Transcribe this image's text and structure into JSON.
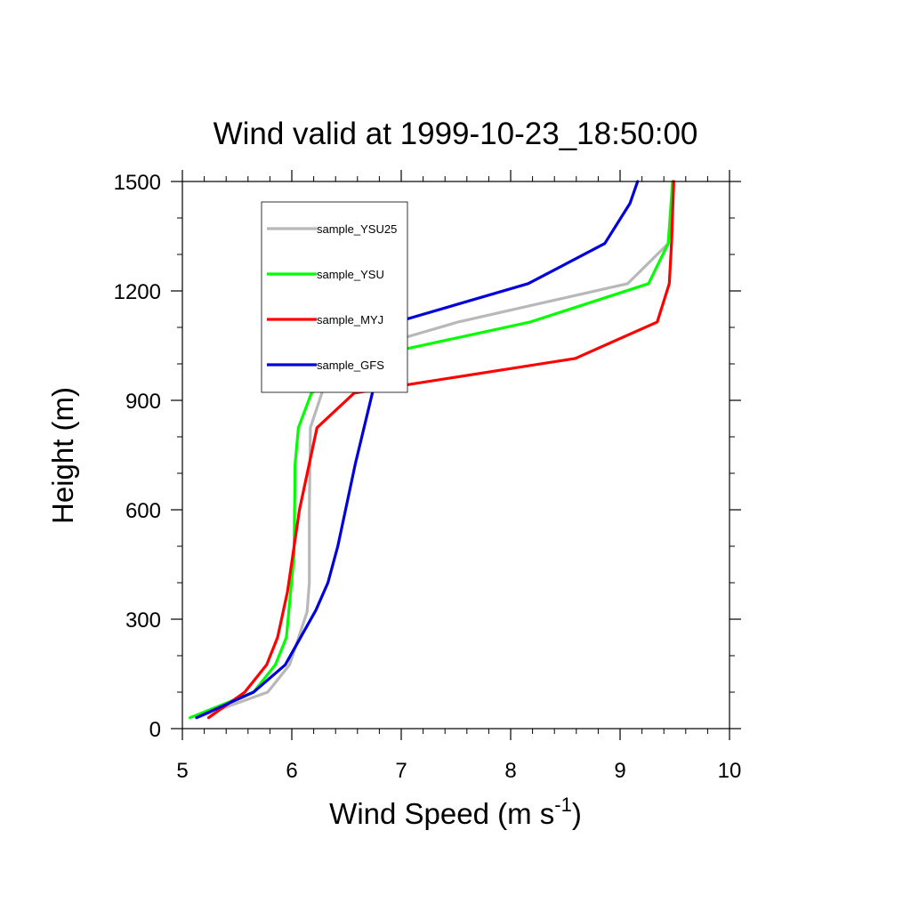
{
  "chart_data": {
    "type": "line",
    "title": "Wind valid at 1999-10-23_18:50:00",
    "xlabel_main": "Wind Speed (m s",
    "xlabel_sup": "-1",
    "xlabel_close": ")",
    "ylabel": "Height (m)",
    "xlim": [
      5,
      10
    ],
    "ylim": [
      0,
      1500
    ],
    "xticks": [
      "5",
      "6",
      "7",
      "8",
      "9",
      "10"
    ],
    "yticks": [
      "0",
      "300",
      "600",
      "900",
      "1200",
      "1500"
    ],
    "legend_position": "top-left",
    "series": [
      {
        "name": "sample_YSU25",
        "color": "#b8b8b8",
        "x": [
          5.13,
          5.78,
          5.98,
          6.14,
          6.16,
          6.16,
          6.17,
          6.38,
          7.52,
          9.07,
          9.44,
          9.49
        ],
        "y": [
          30,
          100,
          175,
          320,
          400,
          600,
          825,
          1015,
          1115,
          1220,
          1330,
          1500
        ]
      },
      {
        "name": "sample_YSU",
        "color": "#00ff00",
        "x": [
          5.07,
          5.65,
          5.85,
          5.95,
          6.02,
          6.03,
          6.06,
          6.18,
          6.64,
          8.18,
          9.26,
          9.44,
          9.48
        ],
        "y": [
          30,
          100,
          175,
          250,
          475,
          725,
          825,
          920,
          1015,
          1115,
          1220,
          1330,
          1500
        ]
      },
      {
        "name": "sample_MYJ",
        "color": "#ff0000",
        "x": [
          5.24,
          5.57,
          5.77,
          5.87,
          5.96,
          6.07,
          6.23,
          6.57,
          8.59,
          9.34,
          9.45,
          9.47,
          9.49
        ],
        "y": [
          30,
          100,
          175,
          250,
          375,
          600,
          825,
          920,
          1015,
          1115,
          1220,
          1330,
          1500
        ]
      },
      {
        "name": "sample_GFS",
        "color": "#0000dd",
        "x": [
          5.13,
          5.65,
          5.94,
          6.22,
          6.33,
          6.42,
          6.58,
          6.76,
          6.96,
          8.16,
          8.86,
          9.09,
          9.16
        ],
        "y": [
          30,
          100,
          175,
          325,
          400,
          500,
          725,
          950,
          1115,
          1220,
          1330,
          1440,
          1500
        ]
      }
    ]
  }
}
